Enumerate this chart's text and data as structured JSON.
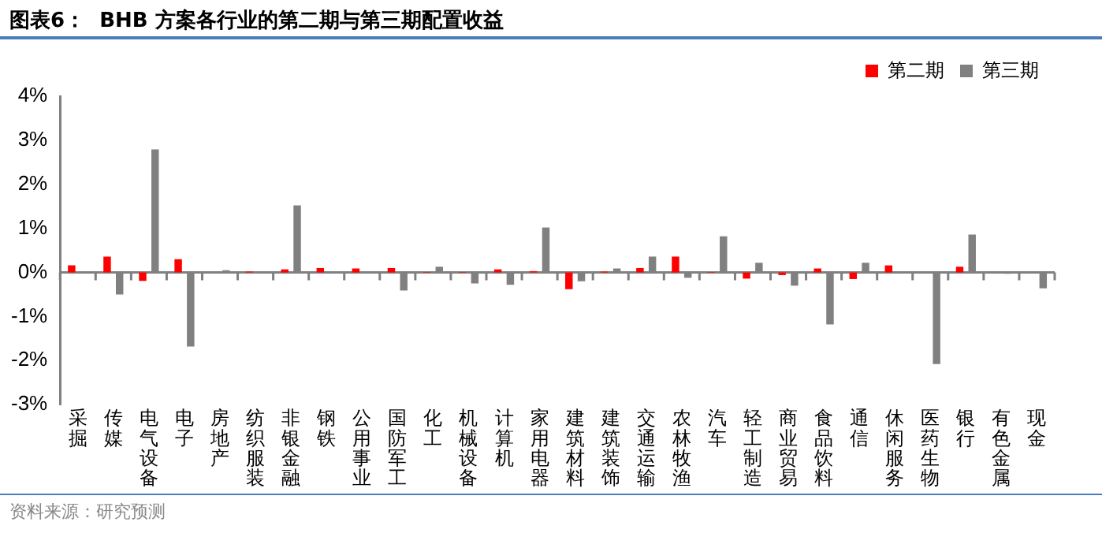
{
  "chart_data": {
    "type": "bar",
    "title": "图表6：  BHB 方案各行业的第二期与第三期配置收益",
    "categories": [
      "采掘",
      "传媒",
      "电气设备",
      "电子",
      "房地产",
      "纺织服装",
      "非银金融",
      "钢铁",
      "公用事业",
      "国防军工",
      "化工",
      "机械设备",
      "计算机",
      "家用电器",
      "建筑材料",
      "建筑装饰",
      "交通运输",
      "农林牧渔",
      "汽车",
      "轻工制造",
      "商业贸易",
      "食品饮料",
      "通信",
      "休闲服务",
      "医药生物",
      "银行",
      "有色金属",
      "现金"
    ],
    "series": [
      {
        "name": "第二期",
        "color": "#ff0000",
        "values": [
          0.16,
          0.36,
          -0.19,
          0.3,
          0,
          0.02,
          0.07,
          0.1,
          0.09,
          0.1,
          0.01,
          0.01,
          0.07,
          0.03,
          -0.38,
          0.02,
          0.1,
          0.36,
          0.01,
          -0.14,
          -0.06,
          0.09,
          -0.15,
          0.16,
          0,
          0.13,
          0,
          0
        ]
      },
      {
        "name": "第三期",
        "color": "#808080",
        "values": [
          0,
          -0.5,
          2.79,
          -1.68,
          0.05,
          0,
          1.52,
          0,
          0,
          -0.41,
          0.13,
          -0.25,
          -0.28,
          1.02,
          -0.2,
          0.09,
          0.36,
          -0.12,
          0.82,
          0.22,
          -0.3,
          -1.18,
          0.22,
          0,
          -2.08,
          0.86,
          -0.03,
          -0.36
        ]
      }
    ],
    "ylim": [
      -3,
      4
    ],
    "yticks": [
      {
        "value": -3,
        "label": "-3%"
      },
      {
        "value": -2,
        "label": "-2%"
      },
      {
        "value": -1,
        "label": "-1%"
      },
      {
        "value": 0,
        "label": "0%"
      },
      {
        "value": 1,
        "label": "1%"
      },
      {
        "value": 2,
        "label": "2%"
      },
      {
        "value": 3,
        "label": "3%"
      },
      {
        "value": 4,
        "label": "4%"
      }
    ],
    "legend": "top",
    "annotations": [
      "资料来源：研究预测"
    ]
  }
}
